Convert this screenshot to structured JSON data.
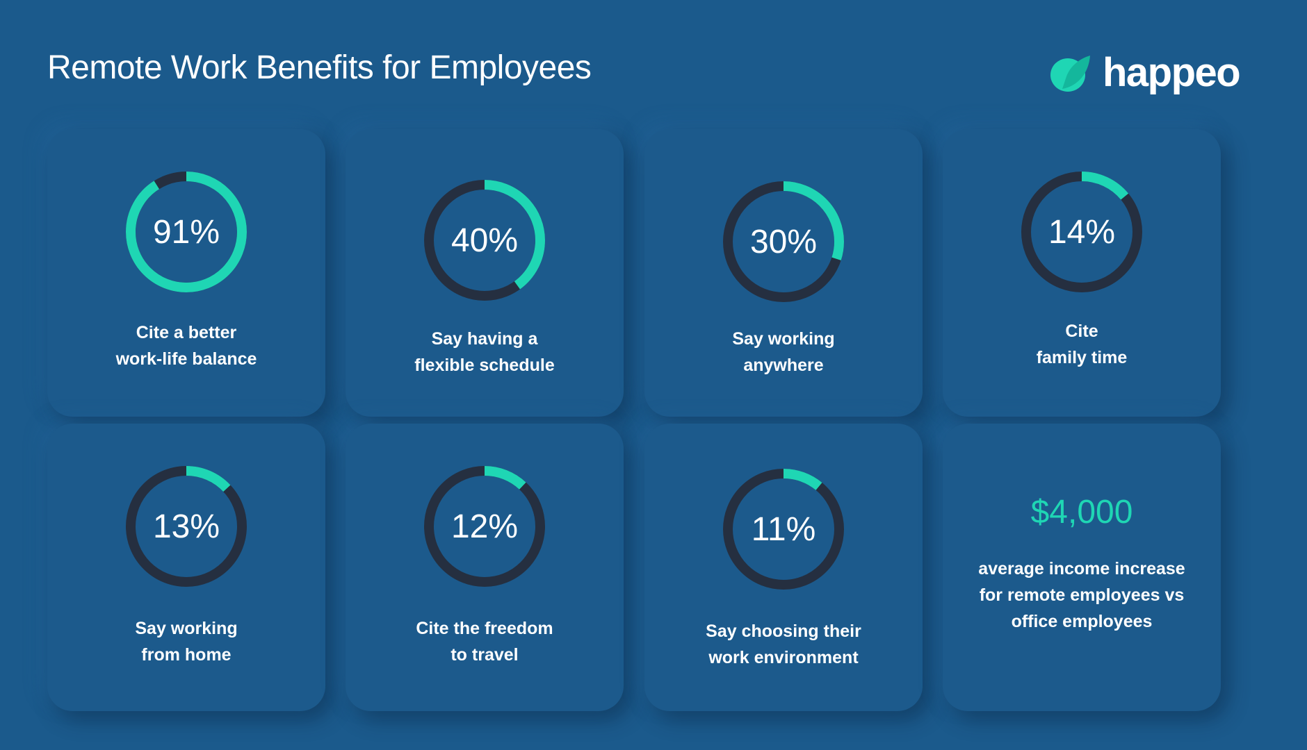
{
  "title": "Remote Work Benefits for Employees",
  "logo": {
    "text": "happeo",
    "icon": "happeo-leaf-icon"
  },
  "colors": {
    "background": "#1b5a8c",
    "accent": "#1fd6b4",
    "track": "#252f40",
    "text": "#ffffff"
  },
  "chart_data": {
    "type": "donut",
    "title": "Remote Work Benefits for Employees",
    "categories": [
      "Cite a better work-life balance",
      "Say having a flexible schedule",
      "Say working anywhere",
      "Cite family time",
      "Say working from home",
      "Cite the freedom to travel",
      "Say choosing their work environment"
    ],
    "values": [
      91,
      40,
      30,
      14,
      13,
      12,
      11
    ],
    "unit": "%",
    "items": [
      {
        "value": 91,
        "value_label": "91%",
        "label": "Cite a better\nwork-life balance"
      },
      {
        "value": 40,
        "value_label": "40%",
        "label": "Say having a\nflexible schedule"
      },
      {
        "value": 30,
        "value_label": "30%",
        "label": "Say working\nanywhere"
      },
      {
        "value": 14,
        "value_label": "14%",
        "label": "Cite\nfamily time"
      },
      {
        "value": 13,
        "value_label": "13%",
        "label": "Say working\nfrom home"
      },
      {
        "value": 12,
        "value_label": "12%",
        "label": "Cite the freedom\nto travel"
      },
      {
        "value": 11,
        "value_label": "11%",
        "label": "Say choosing their\nwork environment"
      }
    ],
    "highlight": {
      "value_label": "$4,000",
      "label": "average income increase\nfor remote employees vs\noffice employees"
    }
  }
}
